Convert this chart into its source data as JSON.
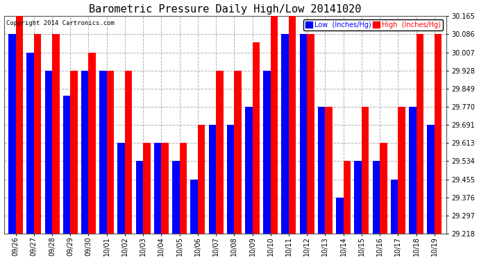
{
  "title": "Barometric Pressure Daily High/Low 20141020",
  "copyright": "Copyright 2014 Cartronics.com",
  "legend_low": "Low  (Inches/Hg)",
  "legend_high": "High  (Inches/Hg)",
  "dates": [
    "09/26",
    "09/27",
    "09/28",
    "09/29",
    "09/30",
    "10/01",
    "10/02",
    "10/03",
    "10/04",
    "10/05",
    "10/06",
    "10/07",
    "10/08",
    "10/09",
    "10/10",
    "10/11",
    "10/12",
    "10/13",
    "10/14",
    "10/15",
    "10/16",
    "10/17",
    "10/18",
    "10/19"
  ],
  "low_values": [
    30.086,
    30.007,
    29.928,
    29.82,
    29.928,
    29.928,
    29.613,
    29.534,
    29.613,
    29.534,
    29.455,
    29.691,
    29.691,
    29.77,
    29.928,
    30.086,
    30.086,
    29.77,
    29.376,
    29.534,
    29.534,
    29.455,
    29.77,
    29.691
  ],
  "high_values": [
    30.165,
    30.086,
    30.086,
    29.928,
    30.007,
    29.928,
    29.928,
    29.613,
    29.613,
    29.613,
    29.691,
    29.928,
    29.928,
    30.05,
    30.165,
    30.165,
    30.086,
    29.77,
    29.534,
    29.77,
    29.613,
    29.77,
    30.086,
    30.086
  ],
  "ylim_min": 29.218,
  "ylim_max": 30.165,
  "yticks": [
    29.218,
    29.297,
    29.376,
    29.455,
    29.534,
    29.613,
    29.691,
    29.77,
    29.849,
    29.928,
    30.007,
    30.086,
    30.165
  ],
  "bar_color_low": "#0000ff",
  "bar_color_high": "#ff0000",
  "background_color": "#ffffff",
  "grid_color": "#b0b0b0",
  "title_fontsize": 11,
  "axis_fontsize": 7,
  "copyright_fontsize": 6.5,
  "bar_bottom": 29.218
}
